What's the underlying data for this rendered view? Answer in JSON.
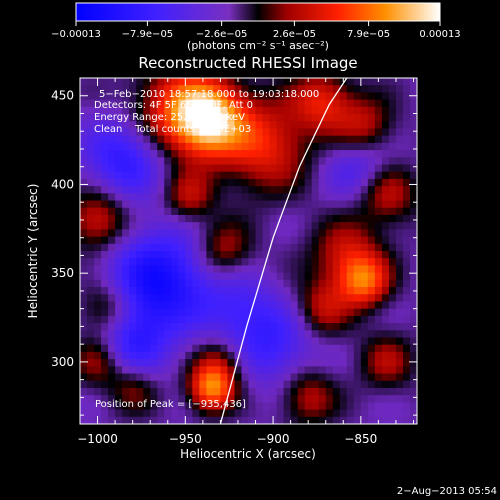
{
  "chart_data": {
    "type": "heatmap",
    "title": "Reconstructed RHESSI Image",
    "xlabel": "Heliocentric X (arcsec)",
    "ylabel": "Heliocentric Y (arcsec)",
    "xlim": [
      -1010,
      -818
    ],
    "ylim": [
      265,
      460
    ],
    "x_ticks": [
      -1000,
      -950,
      -900,
      -850
    ],
    "y_ticks": [
      300,
      350,
      400,
      450
    ],
    "x_tick_labels": [
      "−1000",
      "−950",
      "−900",
      "−850"
    ],
    "y_tick_labels": [
      "300",
      "350",
      "400",
      "450"
    ],
    "colorbar": {
      "range": [
        -0.00013,
        0.00013
      ],
      "ticks": [
        -0.00013,
        -7.9e-05,
        -2.6e-05,
        2.6e-05,
        7.9e-05,
        0.00013
      ],
      "tick_labels": [
        "−0.00013",
        "−7.9e−05",
        "−2.6e−05",
        "2.6e−05",
        "7.9e−05",
        "0.00013"
      ],
      "unit_label": "(photons cm⁻² s⁻¹ asec⁻²)"
    },
    "annotations": [
      "5−Feb−2010 18:57:18.000 to 19:03:18.000",
      "Detectors: 4F 5F 6F 7F 8F, Att 0",
      "Energy Range: 25.0−50.0 keV",
      "Clean    Total counts: 3.99E+03"
    ],
    "peak_label": "Position of Peak = [−935,436]",
    "peak": [
      -935,
      436
    ],
    "limb": [
      [
        -930,
        265
      ],
      [
        -915,
        320
      ],
      [
        -900,
        370
      ],
      [
        -885,
        410
      ],
      [
        -868,
        445
      ],
      [
        -858,
        460
      ]
    ],
    "sources": [
      {
        "x": -937,
        "y": 437,
        "amp": 1.0,
        "r": 14
      },
      {
        "x": -955,
        "y": 442,
        "amp": 0.55,
        "r": 18
      },
      {
        "x": -905,
        "y": 422,
        "amp": 0.55,
        "r": 18
      },
      {
        "x": -872,
        "y": 447,
        "amp": 0.5,
        "r": 12
      },
      {
        "x": -848,
        "y": 432,
        "amp": 0.45,
        "r": 12
      },
      {
        "x": -835,
        "y": 395,
        "amp": 0.45,
        "r": 12
      },
      {
        "x": -1000,
        "y": 380,
        "amp": 0.5,
        "r": 12
      },
      {
        "x": -948,
        "y": 393,
        "amp": 0.4,
        "r": 10
      },
      {
        "x": -928,
        "y": 363,
        "amp": 0.4,
        "r": 11
      },
      {
        "x": -858,
        "y": 360,
        "amp": 0.45,
        "r": 14
      },
      {
        "x": -848,
        "y": 345,
        "amp": 0.65,
        "r": 10
      },
      {
        "x": -872,
        "y": 330,
        "amp": 0.4,
        "r": 11
      },
      {
        "x": -995,
        "y": 330,
        "amp": 0.4,
        "r": 11
      },
      {
        "x": -1000,
        "y": 300,
        "amp": 0.35,
        "r": 10
      },
      {
        "x": -930,
        "y": 300,
        "amp": 0.35,
        "r": 10
      },
      {
        "x": -935,
        "y": 285,
        "amp": 0.8,
        "r": 9
      },
      {
        "x": -980,
        "y": 285,
        "amp": 0.3,
        "r": 10
      },
      {
        "x": -880,
        "y": 280,
        "amp": 0.4,
        "r": 11
      },
      {
        "x": -835,
        "y": 300,
        "amp": 0.35,
        "r": 11
      },
      {
        "x": -965,
        "y": 345,
        "amp": -0.7,
        "r": 20
      },
      {
        "x": -985,
        "y": 415,
        "amp": -0.5,
        "r": 16
      },
      {
        "x": -900,
        "y": 310,
        "amp": -0.4,
        "r": 16
      },
      {
        "x": -850,
        "y": 410,
        "amp": -0.35,
        "r": 14
      },
      {
        "x": -980,
        "y": 310,
        "amp": -0.4,
        "r": 14
      },
      {
        "x": -920,
        "y": 330,
        "amp": -0.3,
        "r": 14
      }
    ]
  },
  "footer": {
    "date": "2−Aug−2013 05:54"
  }
}
